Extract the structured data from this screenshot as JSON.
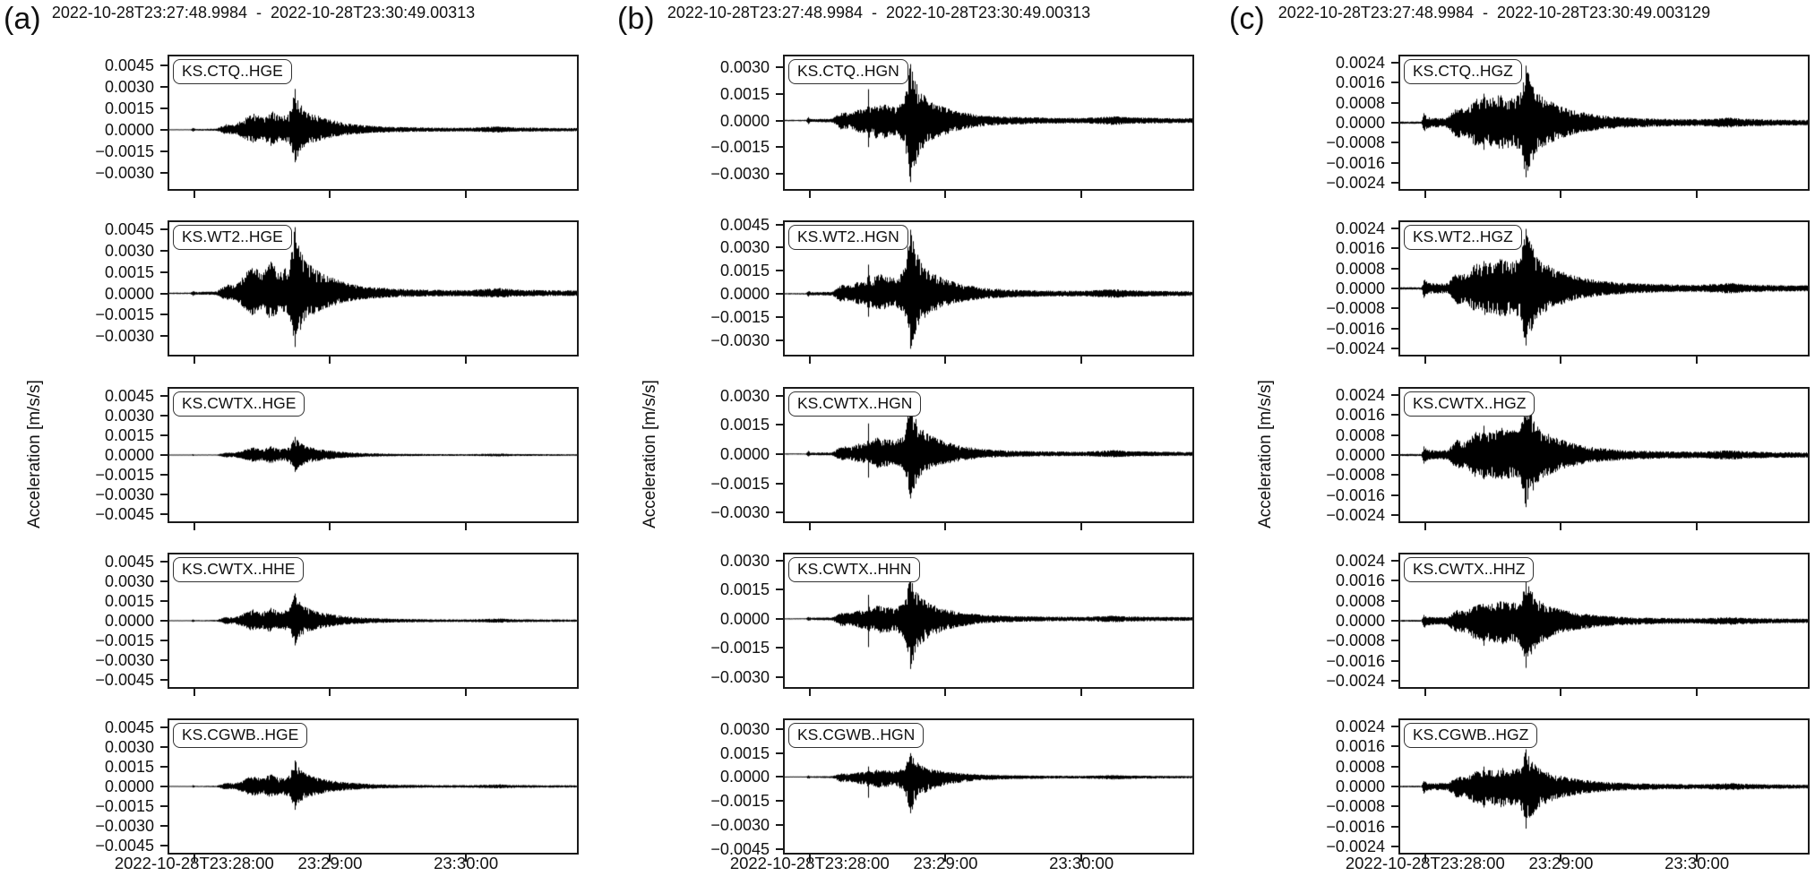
{
  "figure": {
    "ylabel": "Acceleration [m/s/s]",
    "panel_letters": [
      "(a)",
      "(b)",
      "(c)"
    ]
  },
  "chart_data": [
    {
      "type": "line",
      "panel": "(a)",
      "component": "E",
      "title": "2022-10-28T23:27:48.9984  -  2022-10-28T23:30:49.00313",
      "ylabel": "Acceleration [m/s/s]",
      "x_start": "2022-10-28T23:27:48.9984",
      "x_span_seconds": 180,
      "xtick_labels": [
        "2022-10-28T23:28:00",
        "23:29:00",
        "23:30:00"
      ],
      "xtick_seconds": [
        11,
        71,
        131
      ],
      "grid": false,
      "envelope": [
        [
          0,
          0.012
        ],
        [
          9.5,
          0.012
        ],
        [
          10.5,
          0.055
        ],
        [
          11.5,
          0.022
        ],
        [
          21,
          0.03
        ],
        [
          25,
          0.14
        ],
        [
          29,
          0.12
        ],
        [
          33,
          0.28
        ],
        [
          37,
          0.42
        ],
        [
          41,
          0.3
        ],
        [
          45,
          0.5
        ],
        [
          49,
          0.32
        ],
        [
          53,
          0.42
        ],
        [
          55.5,
          1.0
        ],
        [
          57.5,
          0.72
        ],
        [
          60,
          0.5
        ],
        [
          64,
          0.38
        ],
        [
          70,
          0.26
        ],
        [
          78,
          0.16
        ],
        [
          88,
          0.1
        ],
        [
          100,
          0.07
        ],
        [
          115,
          0.055
        ],
        [
          132,
          0.05
        ],
        [
          146,
          0.085
        ],
        [
          152,
          0.06
        ],
        [
          165,
          0.05
        ],
        [
          180,
          0.045
        ]
      ],
      "stations": [
        {
          "label": "KS.CTQ..HGE",
          "peak_max": 0.0029,
          "peak_min": -0.0023,
          "ylim": [
            0.00515,
            -0.00415
          ],
          "yticks": [
            0.0045,
            0.003,
            0.0015,
            0.0,
            -0.0015,
            -0.003
          ]
        },
        {
          "label": "KS.WT2..HGE",
          "peak_max": 0.0047,
          "peak_min": -0.0038,
          "ylim": [
            0.005,
            -0.0043
          ],
          "yticks": [
            0.0045,
            0.003,
            0.0015,
            0.0,
            -0.0015,
            -0.003
          ]
        },
        {
          "label": "KS.CWTX..HGE",
          "peak_max": 0.0014,
          "peak_min": -0.0013,
          "ylim": [
            0.00505,
            -0.00505
          ],
          "yticks": [
            0.0045,
            0.003,
            0.0015,
            0.0,
            -0.0015,
            -0.003,
            -0.0045
          ]
        },
        {
          "label": "KS.CWTX..HHE",
          "peak_max": 0.0021,
          "peak_min": -0.0019,
          "ylim": [
            0.00505,
            -0.00505
          ],
          "yticks": [
            0.0045,
            0.003,
            0.0015,
            0.0,
            -0.0015,
            -0.003,
            -0.0045
          ]
        },
        {
          "label": "KS.CGWB..HGE",
          "peak_max": 0.002,
          "peak_min": -0.0018,
          "ylim": [
            0.00505,
            -0.00505
          ],
          "yticks": [
            0.0045,
            0.003,
            0.0015,
            0.0,
            -0.0015,
            -0.003,
            -0.0045
          ]
        }
      ]
    },
    {
      "type": "line",
      "panel": "(b)",
      "component": "N",
      "title": "2022-10-28T23:27:48.9984  -  2022-10-28T23:30:49.00313",
      "ylabel": "Acceleration [m/s/s]",
      "x_start": "2022-10-28T23:27:48.9984",
      "x_span_seconds": 180,
      "xtick_labels": [
        "2022-10-28T23:28:00",
        "23:29:00",
        "23:30:00"
      ],
      "xtick_seconds": [
        11,
        71,
        131
      ],
      "grid": false,
      "envelope": [
        [
          0,
          0.012
        ],
        [
          9.5,
          0.012
        ],
        [
          10.5,
          0.06
        ],
        [
          11.5,
          0.025
        ],
        [
          21,
          0.032
        ],
        [
          25,
          0.15
        ],
        [
          29,
          0.13
        ],
        [
          33,
          0.2
        ],
        [
          36.5,
          0.2
        ],
        [
          37,
          0.58
        ],
        [
          37.5,
          0.2
        ],
        [
          41,
          0.32
        ],
        [
          45,
          0.28
        ],
        [
          49,
          0.24
        ],
        [
          53,
          0.4
        ],
        [
          55.5,
          1.0
        ],
        [
          57.5,
          0.75
        ],
        [
          60,
          0.5
        ],
        [
          64,
          0.36
        ],
        [
          70,
          0.24
        ],
        [
          78,
          0.15
        ],
        [
          88,
          0.09
        ],
        [
          100,
          0.065
        ],
        [
          115,
          0.05
        ],
        [
          132,
          0.045
        ],
        [
          146,
          0.075
        ],
        [
          152,
          0.055
        ],
        [
          165,
          0.045
        ],
        [
          180,
          0.04
        ]
      ],
      "stations": [
        {
          "label": "KS.CTQ..HGN",
          "peak_max": 0.0032,
          "peak_min": -0.0035,
          "ylim": [
            0.0036,
            -0.00385
          ],
          "yticks": [
            0.003,
            0.0015,
            0.0,
            -0.0015,
            -0.003
          ]
        },
        {
          "label": "KS.WT2..HGN",
          "peak_max": 0.0042,
          "peak_min": -0.0036,
          "ylim": [
            0.00465,
            -0.00395
          ],
          "yticks": [
            0.0045,
            0.003,
            0.0015,
            0.0,
            -0.0015,
            -0.003
          ]
        },
        {
          "label": "KS.CWTX..HGN",
          "peak_max": 0.0028,
          "peak_min": -0.0023,
          "ylim": [
            0.00335,
            -0.00345
          ],
          "yticks": [
            0.003,
            0.0015,
            0.0,
            -0.0015,
            -0.003
          ]
        },
        {
          "label": "KS.CWTX..HHN",
          "peak_max": 0.0022,
          "peak_min": -0.0026,
          "ylim": [
            0.0033,
            -0.0035
          ],
          "yticks": [
            0.003,
            0.0015,
            0.0,
            -0.0015,
            -0.003
          ]
        },
        {
          "label": "KS.CGWB..HGN",
          "peak_max": 0.0015,
          "peak_min": -0.0023,
          "ylim": [
            0.00355,
            -0.00475
          ],
          "yticks": [
            0.003,
            0.0015,
            0.0,
            -0.0015,
            -0.003,
            -0.0045
          ]
        }
      ]
    },
    {
      "type": "line",
      "panel": "(c)",
      "component": "Z",
      "title": "2022-10-28T23:27:48.9984  -  2022-10-28T23:30:49.003129",
      "ylabel": "Acceleration [m/s/s]",
      "x_start": "2022-10-28T23:27:48.9984",
      "x_span_seconds": 180,
      "xtick_labels": [
        "2022-10-28T23:28:00",
        "23:29:00",
        "23:30:00"
      ],
      "xtick_seconds": [
        11,
        71,
        131
      ],
      "grid": false,
      "envelope": [
        [
          0,
          0.02
        ],
        [
          9.5,
          0.02
        ],
        [
          10.5,
          0.17
        ],
        [
          12,
          0.1
        ],
        [
          15,
          0.085
        ],
        [
          21,
          0.09
        ],
        [
          25,
          0.28
        ],
        [
          29,
          0.24
        ],
        [
          33,
          0.42
        ],
        [
          36.5,
          0.4
        ],
        [
          37,
          0.62
        ],
        [
          37.5,
          0.42
        ],
        [
          41,
          0.45
        ],
        [
          45,
          0.5
        ],
        [
          49,
          0.44
        ],
        [
          53,
          0.5
        ],
        [
          55.5,
          1.0
        ],
        [
          57.5,
          0.8
        ],
        [
          60,
          0.55
        ],
        [
          64,
          0.42
        ],
        [
          70,
          0.3
        ],
        [
          78,
          0.2
        ],
        [
          88,
          0.13
        ],
        [
          100,
          0.09
        ],
        [
          115,
          0.07
        ],
        [
          132,
          0.06
        ],
        [
          146,
          0.09
        ],
        [
          152,
          0.07
        ],
        [
          165,
          0.055
        ],
        [
          180,
          0.05
        ]
      ],
      "stations": [
        {
          "label": "KS.CTQ..HGZ",
          "peak_max": 0.0023,
          "peak_min": -0.0022,
          "ylim": [
            0.00265,
            -0.00265
          ],
          "yticks": [
            0.0024,
            0.0016,
            0.0008,
            0.0,
            -0.0008,
            -0.0016,
            -0.0024
          ]
        },
        {
          "label": "KS.WT2..HGZ",
          "peak_max": 0.0024,
          "peak_min": -0.0023,
          "ylim": [
            0.00265,
            -0.00265
          ],
          "yticks": [
            0.0024,
            0.0016,
            0.0008,
            0.0,
            -0.0008,
            -0.0016,
            -0.0024
          ]
        },
        {
          "label": "KS.CWTX..HGZ",
          "peak_max": 0.0022,
          "peak_min": -0.0021,
          "ylim": [
            0.00265,
            -0.00265
          ],
          "yticks": [
            0.0024,
            0.0016,
            0.0008,
            0.0,
            -0.0008,
            -0.0016,
            -0.0024
          ]
        },
        {
          "label": "KS.CWTX..HHZ",
          "peak_max": 0.0016,
          "peak_min": -0.0019,
          "ylim": [
            0.00265,
            -0.00265
          ],
          "yticks": [
            0.0024,
            0.0016,
            0.0008,
            0.0,
            -0.0008,
            -0.0016,
            -0.0024
          ]
        },
        {
          "label": "KS.CGWB..HGZ",
          "peak_max": 0.0015,
          "peak_min": -0.0017,
          "ylim": [
            0.00265,
            -0.00265
          ],
          "yticks": [
            0.0024,
            0.0016,
            0.0008,
            0.0,
            -0.0008,
            -0.0016,
            -0.0024
          ]
        }
      ]
    }
  ]
}
